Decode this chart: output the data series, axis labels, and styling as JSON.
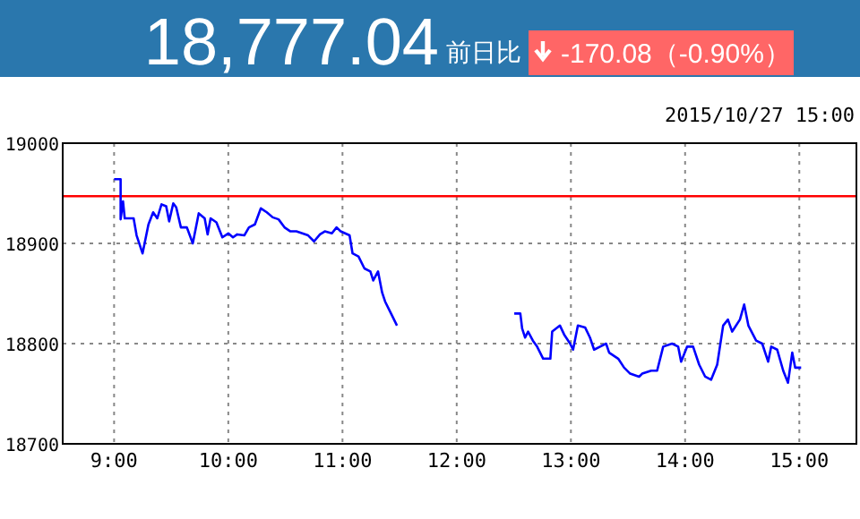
{
  "chart_data": {
    "type": "line",
    "title": "18,777.04",
    "subtitle": "前日比",
    "annotations": [
      "-170.08（-0.90%）",
      "2015/10/27 15:00"
    ],
    "xlim": [
      8.55,
      15.5
    ],
    "xticks": [
      {
        "value": 9,
        "label": "9:00"
      },
      {
        "value": 10,
        "label": "10:00"
      },
      {
        "value": 11,
        "label": "11:00"
      },
      {
        "value": 12,
        "label": "12:00"
      },
      {
        "value": 13,
        "label": "13:00"
      },
      {
        "value": 14,
        "label": "14:00"
      },
      {
        "value": 15,
        "label": "15:00"
      }
    ],
    "ylim": [
      18700,
      19000
    ],
    "yticks": [
      18700,
      18800,
      18900,
      19000
    ],
    "grid": true,
    "marker": "none",
    "line_style": "solid",
    "ref_lines": [
      {
        "axis": "y",
        "value": 18947.12,
        "color": "#ff0000"
      }
    ],
    "series": [
      {
        "color": "#0000ff",
        "x": [
          9,
          9.057,
          9.057,
          9.078,
          9.093,
          9.171,
          9.197,
          9.249,
          9.301,
          9.342,
          9.378,
          9.415,
          9.456,
          9.482,
          9.518,
          9.544,
          9.585,
          9.637,
          9.689,
          9.741,
          9.793,
          9.819,
          9.845,
          9.896,
          9.948,
          10,
          10.041,
          10.078,
          10.14,
          10.181,
          10.233,
          10.285,
          10.337,
          10.389,
          10.44,
          10.492,
          10.544,
          10.596,
          10.648,
          10.699,
          10.751,
          10.803,
          10.845,
          10.907,
          10.948,
          10.984,
          11.062,
          11.088,
          11.14,
          11.192,
          11.244,
          11.269,
          11.311,
          11.347,
          11.373,
          11.425,
          11.477,
          12,
          12.504,
          12.557,
          12.573,
          12.599,
          12.625,
          12.667,
          12.704,
          12.757,
          12.82,
          12.836,
          12.904,
          12.941,
          12.993,
          13.019,
          13.061,
          13.125,
          13.167,
          13.203,
          13.256,
          13.308,
          13.335,
          13.414,
          13.466,
          13.519,
          13.597,
          13.624,
          13.703,
          13.755,
          13.808,
          13.886,
          13.939,
          13.965,
          14.018,
          14.07,
          14.123,
          14.176,
          14.228,
          14.281,
          14.333,
          14.375,
          14.412,
          14.48,
          14.517,
          14.554,
          14.622,
          14.675,
          14.727,
          14.754,
          14.806,
          14.859,
          14.901,
          14.938,
          14.964,
          15.016
        ],
        "values": [
          18964,
          18964,
          18924,
          18942,
          18925,
          18925,
          18908,
          18890,
          18919,
          18931,
          18925,
          18939,
          18937,
          18922,
          18940,
          18936,
          18916,
          18916,
          18900,
          18930,
          18925,
          18909,
          18925,
          18921,
          18906,
          18910,
          18906,
          18909,
          18908,
          18916,
          18919,
          18935,
          18931,
          18926,
          18924,
          18916,
          18912,
          18912,
          18910,
          18908,
          18902,
          18909,
          18912,
          18910,
          18916,
          18912,
          18908,
          18890,
          18887,
          18875,
          18872,
          18863,
          18872,
          18851,
          18842,
          18830,
          18818,
          null,
          18830,
          18830,
          18815,
          18806,
          18812,
          18803,
          18797,
          18785,
          18785,
          18812,
          18818,
          18809,
          18800,
          18794,
          18818,
          18816,
          18806,
          18794,
          18797,
          18800,
          18791,
          18785,
          18776,
          18770,
          18767,
          18770,
          18773,
          18773,
          18797,
          18800,
          18797,
          18782,
          18797,
          18797,
          18779,
          18767,
          18764,
          18779,
          18818,
          18824,
          18812,
          18824,
          18839,
          18818,
          18803,
          18800,
          18782,
          18797,
          18794,
          18773,
          18761,
          18791,
          18776,
          18776
        ]
      }
    ]
  }
}
